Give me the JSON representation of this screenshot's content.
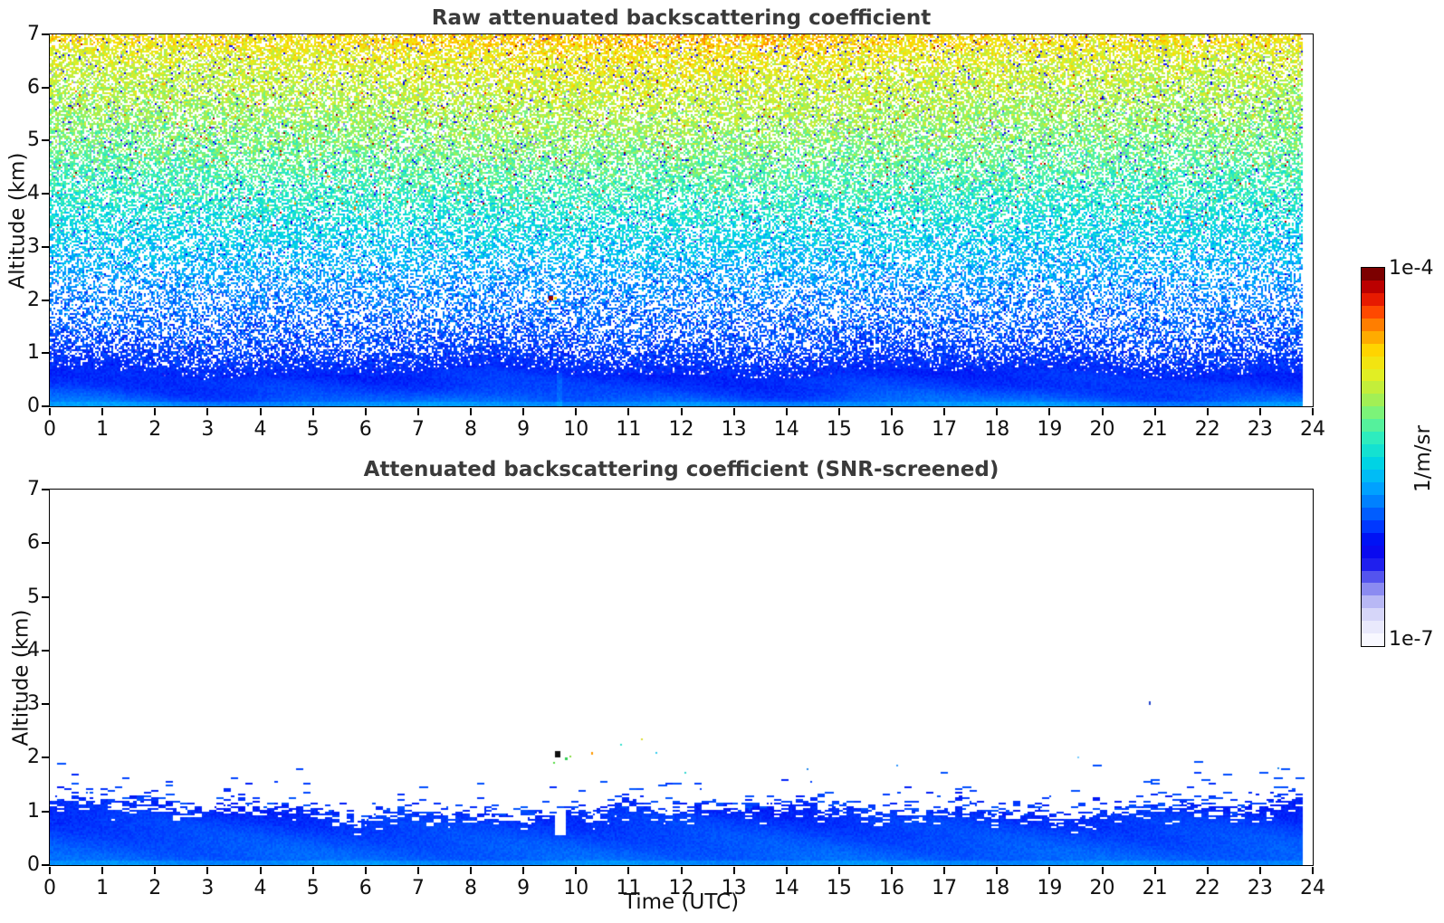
{
  "figure": {
    "background": "#ffffff",
    "title_color": "#3a3a3a",
    "axis_color": "#000000",
    "tick_label_color": "#111111"
  },
  "colorbar": {
    "top_label": "1e-4",
    "bottom_label": "1e-7",
    "unit_label": "1/m/sr",
    "steps": 30,
    "stops": [
      [
        0.0,
        "#f8f8ff"
      ],
      [
        0.05,
        "#e2e2fb"
      ],
      [
        0.09,
        "#c8c8f7"
      ],
      [
        0.13,
        "#9898f2"
      ],
      [
        0.17,
        "#5858ee"
      ],
      [
        0.21,
        "#1a1aee"
      ],
      [
        0.26,
        "#0000f0"
      ],
      [
        0.31,
        "#0038ff"
      ],
      [
        0.37,
        "#0078ff"
      ],
      [
        0.43,
        "#00b0ff"
      ],
      [
        0.49,
        "#00d8e0"
      ],
      [
        0.55,
        "#2cecc0"
      ],
      [
        0.61,
        "#70f484"
      ],
      [
        0.67,
        "#b2ee46"
      ],
      [
        0.73,
        "#e6ee20"
      ],
      [
        0.79,
        "#ffd800"
      ],
      [
        0.85,
        "#ff9000"
      ],
      [
        0.9,
        "#ff4400"
      ],
      [
        0.95,
        "#d80000"
      ],
      [
        1.0,
        "#7c0000"
      ]
    ]
  },
  "chart_data": [
    {
      "type": "heatmap",
      "panel": "top",
      "title": "Raw attenuated backscattering coefficient",
      "xlabel": "",
      "ylabel": "Altitude (km)",
      "x_range": [
        0,
        24
      ],
      "y_range": [
        0,
        7
      ],
      "x_ticks": [
        0,
        1,
        2,
        3,
        4,
        5,
        6,
        7,
        8,
        9,
        10,
        11,
        12,
        13,
        14,
        15,
        16,
        17,
        18,
        19,
        20,
        21,
        22,
        23,
        24
      ],
      "y_ticks": [
        0,
        1,
        2,
        3,
        4,
        5,
        6,
        7
      ],
      "time_coverage_hours": [
        0,
        23.8
      ],
      "color_scale": {
        "type": "log",
        "min": "1e-7",
        "max": "1e-4",
        "unit": "1/m/sr"
      },
      "grid": false,
      "mean_level_profile": [
        [
          0,
          0.365
        ],
        [
          0.12,
          0.345
        ],
        [
          0.3,
          0.315
        ],
        [
          0.62,
          0.295
        ],
        [
          1.0,
          0.315
        ],
        [
          1.6,
          0.35
        ],
        [
          2.2,
          0.39
        ],
        [
          3.0,
          0.46
        ],
        [
          4.0,
          0.54
        ],
        [
          5.0,
          0.61
        ],
        [
          6.0,
          0.67
        ],
        [
          7.0,
          0.74
        ]
      ],
      "white_gap_fraction_profile": [
        [
          0,
          0
        ],
        [
          0.55,
          0
        ],
        [
          0.75,
          0.1
        ],
        [
          1.1,
          0.38
        ],
        [
          1.8,
          0.52
        ],
        [
          2.4,
          0.5
        ],
        [
          3.2,
          0.42
        ],
        [
          4.5,
          0.36
        ],
        [
          7,
          0.3
        ]
      ],
      "noise_spread_profile": [
        [
          0,
          0.012
        ],
        [
          0.62,
          0.02
        ],
        [
          1.0,
          0.05
        ],
        [
          1.6,
          0.08
        ],
        [
          3.0,
          0.095
        ],
        [
          7.0,
          0.105
        ]
      ],
      "dark_outlier_prob": 0.045,
      "midday_warm_bias": {
        "amplitude": 0.05,
        "center_hour": 11.5,
        "width_hours": 6
      },
      "surface_layer": {
        "solid_below_km": 0.62,
        "lighter_near_ground_km": 0.1
      },
      "vertical_streak_hour": 9.68,
      "features": [
        [
          9.52,
          2.04,
          "#8b0000",
          5,
          5
        ],
        [
          9.61,
          2.04,
          "#ffdd00",
          3,
          3
        ],
        [
          9.47,
          1.97,
          "#ff9800",
          2,
          2
        ]
      ]
    },
    {
      "type": "heatmap",
      "panel": "bottom",
      "title": "Attenuated backscattering coefficient (SNR-screened)",
      "xlabel": "Time (UTC)",
      "ylabel": "Altitude (km)",
      "x_range": [
        0,
        24
      ],
      "y_range": [
        0,
        7
      ],
      "x_ticks": [
        0,
        1,
        2,
        3,
        4,
        5,
        6,
        7,
        8,
        9,
        10,
        11,
        12,
        13,
        14,
        15,
        16,
        17,
        18,
        19,
        20,
        21,
        22,
        23,
        24
      ],
      "y_ticks": [
        0,
        1,
        2,
        3,
        4,
        5,
        6,
        7
      ],
      "time_coverage_hours": [
        0,
        23.8
      ],
      "color_scale": {
        "type": "log",
        "min": "1e-7",
        "max": "1e-4",
        "unit": "1/m/sr"
      },
      "grid": false,
      "band": {
        "base_top_km": 1.05,
        "sines": [
          [
            0.1,
            0.52,
            1.1
          ],
          [
            0.06,
            1.85,
            0.3
          ],
          [
            0.04,
            4.1,
            0.0
          ],
          [
            0.05,
            0.23,
            2.0
          ]
        ],
        "edge_jitter_km": 0.07,
        "hole_depth_km": 0.3,
        "hole_max_prob": 0.38,
        "dash_decay_km": 0.12,
        "dash_max_prob": 0.5
      },
      "level_profile": {
        "surface": 0.357,
        "slope_per_km": -0.058,
        "lighter_near_ground_km": 0.1
      },
      "white_notch": {
        "time_utc": [
          9.6,
          9.79
        ],
        "above_altitude_km": 0.55
      },
      "stray_echo_rate": 0.0028,
      "specks": [
        [
          9.65,
          2.07,
          "#101010",
          6,
          7
        ],
        [
          9.81,
          1.99,
          "#33cc55",
          3,
          3
        ],
        [
          9.58,
          1.9,
          "#55dd44",
          2,
          2
        ],
        [
          9.9,
          2.03,
          "#88dd44",
          2,
          2
        ],
        [
          10.3,
          2.08,
          "#ff9900",
          2,
          3
        ],
        [
          10.85,
          2.24,
          "#33e0cc",
          2,
          2
        ],
        [
          11.25,
          2.35,
          "#dddd33",
          2,
          2
        ],
        [
          11.52,
          2.1,
          "#33ccee",
          2,
          2
        ],
        [
          12.08,
          1.72,
          "#33d8d0",
          2,
          2
        ],
        [
          20.9,
          3.02,
          "#2244cc",
          2,
          4
        ],
        [
          19.55,
          2.0,
          "#77ccff",
          2,
          2
        ],
        [
          16.1,
          1.85,
          "#3399ff",
          2,
          2
        ],
        [
          14.4,
          1.78,
          "#2288ee",
          2,
          2
        ],
        [
          23.35,
          1.8,
          "#2288ee",
          2,
          2
        ]
      ]
    }
  ]
}
